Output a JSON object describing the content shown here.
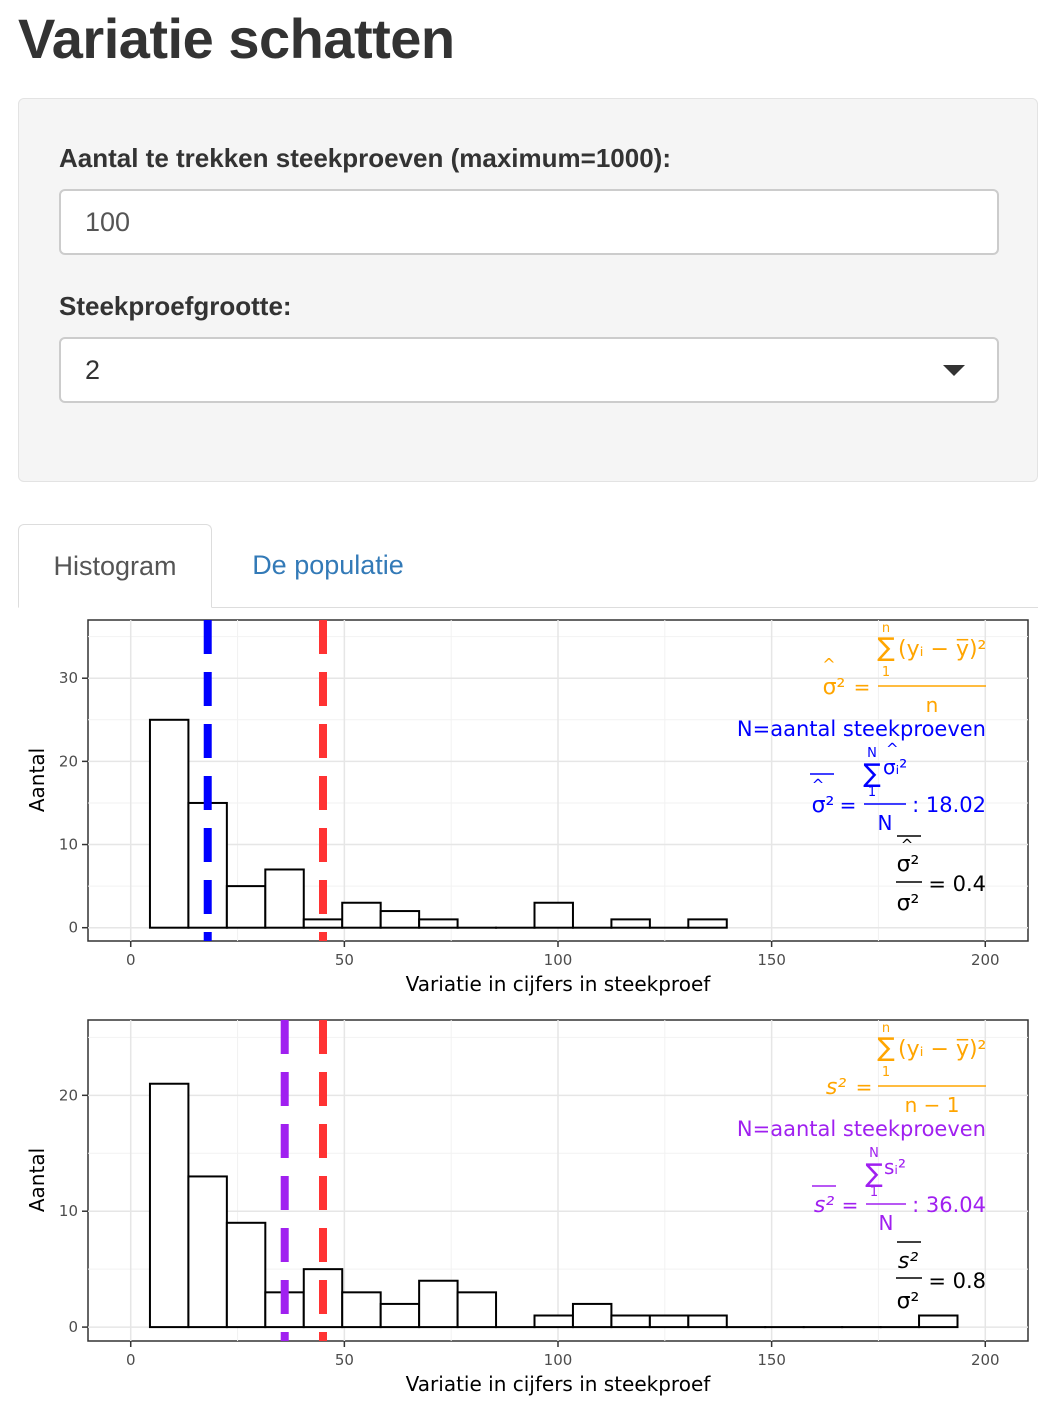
{
  "page": {
    "title": "Variatie schatten"
  },
  "controls": {
    "samples_label": "Aantal te trekken steekproeven (maximum=1000):",
    "samples_value": "100",
    "size_label": "Steekproefgrootte:",
    "size_value": "2"
  },
  "tabs": [
    {
      "label": "Histogram",
      "active": true
    },
    {
      "label": "De populatie",
      "active": false
    }
  ],
  "colors": {
    "orange": "#ffa500",
    "blue": "#0000ff",
    "purple": "#a020f0",
    "red": "#ff3333",
    "link": "#337ab7"
  },
  "chart_data": [
    {
      "type": "bar",
      "xlabel": "Variatie in cijfers in steekproef",
      "ylabel": "Aantal",
      "xlim": [
        -10,
        210
      ],
      "ylim": [
        -1.6,
        37
      ],
      "xticks": [
        0,
        50,
        100,
        150,
        200
      ],
      "yticks": [
        0,
        10,
        20,
        30
      ],
      "bin_width": 9,
      "bin_centers": [
        9,
        18,
        27,
        36,
        45,
        54,
        63,
        72,
        81,
        90,
        99,
        108,
        117,
        126,
        135
      ],
      "values": [
        25,
        15,
        5,
        7,
        1,
        3,
        2,
        1,
        0,
        0,
        3,
        0,
        1,
        0,
        1
      ],
      "vlines": [
        {
          "x": 18.02,
          "color": "#0000ff",
          "meaning": "mean estimate"
        },
        {
          "x": 45,
          "color": "#ff3333",
          "meaning": "population variance"
        }
      ],
      "formula": {
        "lhs": "σ²",
        "sum": "∑",
        "sum_top": "n",
        "sum_bottom": "1",
        "summand": "(yᵢ − y̅)²",
        "denominator": "n",
        "note": "N=aantal steekproeven",
        "mean_lhs": "σ²",
        "mean_term": "σᵢ²",
        "mean_sum_top": "N",
        "mean_sum_bottom": "1",
        "mean_denominator": "N",
        "mean_value": ": 18.02",
        "ratio_top": "σ²",
        "ratio_bottom": "σ²",
        "ratio_value": "= 0.4"
      }
    },
    {
      "type": "bar",
      "xlabel": "Variatie in cijfers in steekproef",
      "ylabel": "Aantal",
      "xlim": [
        -10,
        210
      ],
      "ylim": [
        -1.2,
        26.5
      ],
      "xticks": [
        0,
        50,
        100,
        150,
        200
      ],
      "yticks": [
        0,
        10,
        20
      ],
      "bin_width": 9,
      "bin_centers": [
        9,
        18,
        27,
        36,
        45,
        54,
        63,
        72,
        81,
        90,
        99,
        108,
        117,
        126,
        135,
        144,
        153,
        162,
        171,
        180,
        189
      ],
      "values": [
        21,
        13,
        9,
        3,
        5,
        3,
        2,
        4,
        3,
        0,
        1,
        2,
        1,
        1,
        1,
        0,
        0,
        0,
        0,
        0,
        1
      ],
      "vlines": [
        {
          "x": 36.04,
          "color": "#a020f0",
          "meaning": "mean estimate"
        },
        {
          "x": 45,
          "color": "#ff3333",
          "meaning": "population variance"
        }
      ],
      "formula": {
        "lhs": "s²",
        "sum": "∑",
        "sum_top": "n",
        "sum_bottom": "1",
        "summand": "(yᵢ − y̅)²",
        "denominator": "n − 1",
        "note": "N=aantal steekproeven",
        "mean_lhs": "s²",
        "mean_term": "sᵢ²",
        "mean_sum_top": "N",
        "mean_sum_bottom": "1",
        "mean_denominator": "N",
        "mean_value": ": 36.04",
        "ratio_top": "s²",
        "ratio_bottom": "σ²",
        "ratio_value": "= 0.8"
      }
    }
  ]
}
